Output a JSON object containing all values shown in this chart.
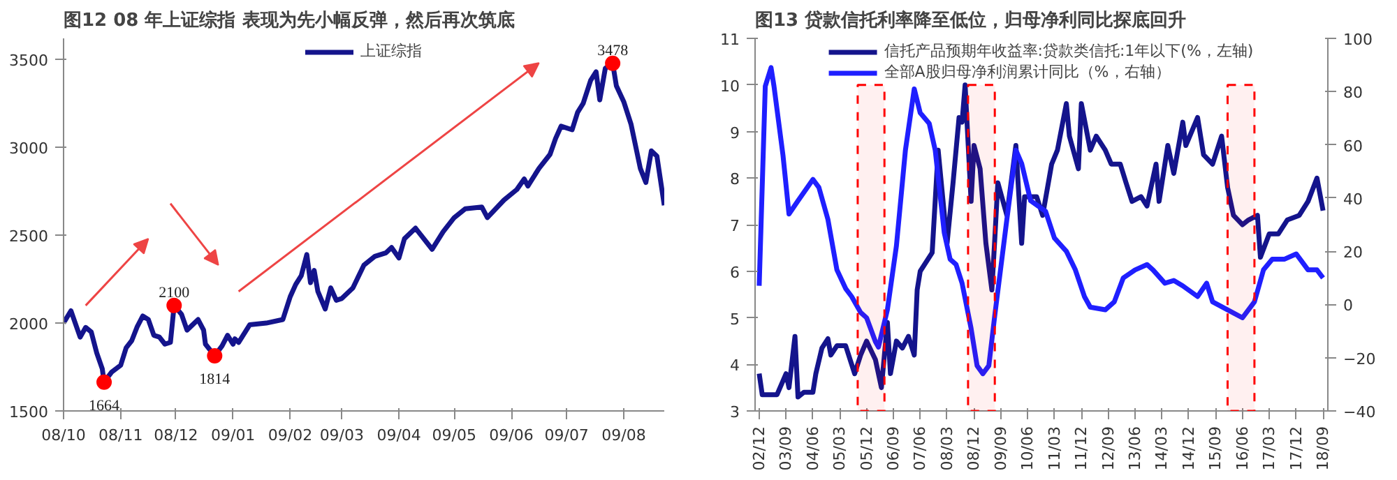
{
  "chart_data": [
    {
      "type": "line",
      "title": "图12 08 年上证综指 表现为先小幅反弹，然后再次筑底",
      "xlim": [
        "2008-10-01",
        "2009-08-23"
      ],
      "ylim": [
        1500,
        3620
      ],
      "yticks": [
        1500,
        2000,
        2500,
        3000,
        3500
      ],
      "xticks": [
        {
          "value": "2008-10",
          "label": "08/10"
        },
        {
          "value": "2008-11",
          "label": "08/11"
        },
        {
          "value": "2008-12",
          "label": "08/12"
        },
        {
          "value": "2009-01",
          "label": "09/01"
        },
        {
          "value": "2009-02",
          "label": "09/02"
        },
        {
          "value": "2009-03",
          "label": "09/03"
        },
        {
          "value": "2009-04",
          "label": "09/04"
        },
        {
          "value": "2009-05",
          "label": "09/05"
        },
        {
          "value": "2009-06",
          "label": "09/06"
        },
        {
          "value": "2009-07",
          "label": "09/07"
        },
        {
          "value": "2009-08",
          "label": "09/08"
        }
      ],
      "legend": "top",
      "grid": false,
      "series": [
        {
          "name": "上证综指",
          "color": "#14148c",
          "x": [
            "2008-10-01",
            "2008-10-05",
            "2008-10-08",
            "2008-10-10",
            "2008-10-13",
            "2008-10-16",
            "2008-10-19",
            "2008-10-22",
            "2008-10-23",
            "2008-10-27",
            "2008-11-01",
            "2008-11-04",
            "2008-11-07",
            "2008-11-10",
            "2008-11-13",
            "2008-11-16",
            "2008-11-19",
            "2008-11-22",
            "2008-11-25",
            "2008-11-28",
            "2008-11-30",
            "2008-12-04",
            "2008-12-07",
            "2008-12-13",
            "2008-12-16",
            "2008-12-17",
            "2008-12-22",
            "2008-12-26",
            "2008-12-29",
            "2009-01-01",
            "2009-01-02",
            "2009-01-04",
            "2009-01-10",
            "2009-01-19",
            "2009-01-28",
            "2009-02-01",
            "2009-02-04",
            "2009-02-07",
            "2009-02-10",
            "2009-02-12",
            "2009-02-14",
            "2009-02-16",
            "2009-02-20",
            "2009-02-23",
            "2009-02-26",
            "2009-03-01",
            "2009-03-07",
            "2009-03-13",
            "2009-03-19",
            "2009-03-25",
            "2009-03-28",
            "2009-04-01",
            "2009-04-04",
            "2009-04-10",
            "2009-04-13",
            "2009-04-19",
            "2009-04-25",
            "2009-05-01",
            "2009-05-07",
            "2009-05-16",
            "2009-05-19",
            "2009-05-28",
            "2009-06-04",
            "2009-06-08",
            "2009-06-10",
            "2009-06-16",
            "2009-06-22",
            "2009-06-25",
            "2009-06-28",
            "2009-07-04",
            "2009-07-07",
            "2009-07-10",
            "2009-07-14",
            "2009-07-17",
            "2009-07-19",
            "2009-07-22",
            "2009-07-26",
            "2009-07-28",
            "2009-08-01",
            "2009-08-05",
            "2009-08-10",
            "2009-08-13",
            "2009-08-16",
            "2009-08-19",
            "2009-08-23"
          ],
          "values": [
            2000,
            2070,
            1980,
            1920,
            1975,
            1950,
            1830,
            1740,
            1664,
            1720,
            1760,
            1860,
            1900,
            1980,
            2040,
            2020,
            1930,
            1920,
            1880,
            1890,
            2100,
            2050,
            1960,
            2020,
            1960,
            1880,
            1814,
            1870,
            1930,
            1880,
            1910,
            1890,
            1990,
            2000,
            2020,
            2150,
            2220,
            2270,
            2390,
            2230,
            2300,
            2180,
            2080,
            2200,
            2130,
            2140,
            2200,
            2330,
            2380,
            2400,
            2430,
            2370,
            2480,
            2540,
            2500,
            2420,
            2520,
            2600,
            2650,
            2660,
            2600,
            2700,
            2760,
            2820,
            2780,
            2880,
            2960,
            3050,
            3120,
            3100,
            3200,
            3250,
            3380,
            3430,
            3270,
            3450,
            3478,
            3350,
            3260,
            3130,
            2880,
            2800,
            2980,
            2950,
            2670
          ]
        },
        {
          "type": "scatter",
          "color": "#ff0000",
          "marker": "circle",
          "x": [
            "2008-10-23",
            "2008-11-30",
            "2008-12-22",
            "2009-07-26"
          ],
          "values": [
            1664,
            2100,
            1814,
            3478
          ],
          "value_labels": [
            "1664",
            "2100",
            "1814",
            "3478"
          ]
        }
      ]
    },
    {
      "type": "line",
      "title": "图13 贷款信托利率降至低位，归母净利同比探底回升",
      "xlim": [
        "2002-10-20",
        "2018-10-20"
      ],
      "ylim": [
        3,
        11
      ],
      "yticks": [
        3,
        4,
        5,
        6,
        7,
        8,
        9,
        10,
        11
      ],
      "y2lim": [
        -40,
        100
      ],
      "y2ticks": [
        -40,
        -20,
        0,
        20,
        40,
        60,
        80,
        100
      ],
      "xticks": [
        {
          "value": "2002-12",
          "label": "02/12"
        },
        {
          "value": "2003-09",
          "label": "03/09"
        },
        {
          "value": "2004-06",
          "label": "04/06"
        },
        {
          "value": "2005-03",
          "label": "05/03"
        },
        {
          "value": "2005-12",
          "label": "05/12"
        },
        {
          "value": "2006-09",
          "label": "06/09"
        },
        {
          "value": "2007-06",
          "label": "07/06"
        },
        {
          "value": "2008-03",
          "label": "08/03"
        },
        {
          "value": "2008-12",
          "label": "08/12"
        },
        {
          "value": "2009-09",
          "label": "09/09"
        },
        {
          "value": "2010-06",
          "label": "10/06"
        },
        {
          "value": "2011-03",
          "label": "11/03"
        },
        {
          "value": "2011-12",
          "label": "11/12"
        },
        {
          "value": "2012-09",
          "label": "12/09"
        },
        {
          "value": "2013-06",
          "label": "13/06"
        },
        {
          "value": "2014-03",
          "label": "14/03"
        },
        {
          "value": "2014-12",
          "label": "14/12"
        },
        {
          "value": "2015-09",
          "label": "15/09"
        },
        {
          "value": "2016-06",
          "label": "16/06"
        },
        {
          "value": "2017-03",
          "label": "17/03"
        },
        {
          "value": "2017-12",
          "label": "17/12"
        },
        {
          "value": "2018-09",
          "label": "18/09"
        }
      ],
      "legend": "top",
      "grid": false,
      "bands": [
        {
          "axis": "x",
          "from": "2005-09",
          "to": "2006-06",
          "color": "#ff0000"
        },
        {
          "axis": "x",
          "from": "2008-10",
          "to": "2009-07",
          "color": "#ff0000"
        },
        {
          "axis": "x",
          "from": "2016-01",
          "to": "2016-10",
          "color": "#ff0000"
        }
      ],
      "series": [
        {
          "name": "信托产品预期年收益率:贷款类信托:1年以下(%，左轴)",
          "color": "#14148c",
          "x": [
            "2002-12",
            "2003-01",
            "2003-06",
            "2003-09",
            "2003-10",
            "2003-12",
            "2004-01",
            "2004-03",
            "2004-06",
            "2004-07",
            "2004-09",
            "2004-11",
            "2004-12",
            "2005-02",
            "2005-05",
            "2005-08",
            "2005-10",
            "2005-12",
            "2006-03",
            "2006-05",
            "2006-07",
            "2006-08",
            "2006-10",
            "2006-12",
            "2007-02",
            "2007-04",
            "2007-05",
            "2007-06",
            "2007-10",
            "2007-12",
            "2008-03",
            "2008-05",
            "2008-07",
            "2008-08",
            "2008-09",
            "2008-11",
            "2008-12",
            "2009-02",
            "2009-04",
            "2009-06",
            "2009-07",
            "2009-08",
            "2009-11",
            "2010-02",
            "2010-04",
            "2010-05",
            "2010-09",
            "2010-11",
            "2011-02",
            "2011-04",
            "2011-07",
            "2011-08",
            "2011-11",
            "2011-12",
            "2012-03",
            "2012-05",
            "2012-08",
            "2012-10",
            "2013-01",
            "2013-03",
            "2013-05",
            "2013-08",
            "2013-10",
            "2014-01",
            "2014-02",
            "2014-05",
            "2014-07",
            "2014-10",
            "2014-11",
            "2015-03",
            "2015-05",
            "2015-08",
            "2015-11",
            "2016-01",
            "2016-03",
            "2016-06",
            "2016-08",
            "2016-11",
            "2016-12",
            "2017-03",
            "2017-06",
            "2017-09",
            "2018-01",
            "2018-04",
            "2018-07",
            "2018-09"
          ],
          "values": [
            3.8,
            3.35,
            3.35,
            3.8,
            3.5,
            4.6,
            3.3,
            3.4,
            3.4,
            3.8,
            4.35,
            4.55,
            4.2,
            4.4,
            4.4,
            3.8,
            4.2,
            4.5,
            4.1,
            3.5,
            4.9,
            3.8,
            4.5,
            4.35,
            4.6,
            4.2,
            5.6,
            6.0,
            6.4,
            8.6,
            6.6,
            7.9,
            9.3,
            9.2,
            10.0,
            7.5,
            8.7,
            8.2,
            6.6,
            5.6,
            6.7,
            7.9,
            7.2,
            8.7,
            6.6,
            7.6,
            7.6,
            7.2,
            8.3,
            8.6,
            9.6,
            8.9,
            8.2,
            9.6,
            8.6,
            8.9,
            8.6,
            8.3,
            8.3,
            7.9,
            7.5,
            7.6,
            7.4,
            8.3,
            7.5,
            8.7,
            8.1,
            9.2,
            8.7,
            9.3,
            8.5,
            8.3,
            8.9,
            7.8,
            7.2,
            7.0,
            7.1,
            7.2,
            6.3,
            6.8,
            6.8,
            7.1,
            7.2,
            7.5,
            8.0,
            7.3
          ]
        },
        {
          "name": "全部A股归母净利润累计同比（%，右轴）",
          "color": "#1f1fff",
          "axis": "y2",
          "x": [
            "2002-12",
            "2003-02",
            "2003-04",
            "2003-05",
            "2003-08",
            "2003-10",
            "2004-01",
            "2004-06",
            "2004-08",
            "2004-11",
            "2005-02",
            "2005-05",
            "2005-07",
            "2005-10",
            "2005-12",
            "2006-03",
            "2006-04",
            "2006-07",
            "2006-10",
            "2007-01",
            "2007-04",
            "2007-06",
            "2007-09",
            "2007-11",
            "2008-02",
            "2008-04",
            "2008-06",
            "2008-08",
            "2008-11",
            "2009-01",
            "2009-03",
            "2009-05",
            "2009-07",
            "2009-11",
            "2010-02",
            "2010-04",
            "2010-07",
            "2010-12",
            "2011-03",
            "2011-07",
            "2011-10",
            "2012-01",
            "2012-03",
            "2012-08",
            "2012-11",
            "2013-02",
            "2013-06",
            "2013-10",
            "2013-12",
            "2014-04",
            "2014-07",
            "2014-10",
            "2015-03",
            "2015-06",
            "2015-08",
            "2016-01",
            "2016-06",
            "2016-10",
            "2017-01",
            "2017-04",
            "2017-08",
            "2017-12",
            "2018-04",
            "2018-07",
            "2018-09"
          ],
          "values": [
            7,
            82,
            89,
            82,
            56,
            34,
            39,
            47,
            44,
            32,
            13,
            6,
            3,
            -3,
            -5,
            -14,
            -16,
            -2,
            22,
            58,
            81,
            72,
            68,
            58,
            27,
            17,
            15,
            8,
            -9,
            -23,
            -26,
            -23,
            -4,
            32,
            58,
            53,
            39,
            35,
            25,
            20,
            13,
            3,
            -1,
            -2,
            1,
            10,
            13,
            15,
            13,
            8,
            9,
            7,
            3,
            8,
            1,
            -2,
            -5,
            1,
            13,
            17,
            17,
            19,
            13,
            13,
            10
          ]
        }
      ]
    }
  ]
}
